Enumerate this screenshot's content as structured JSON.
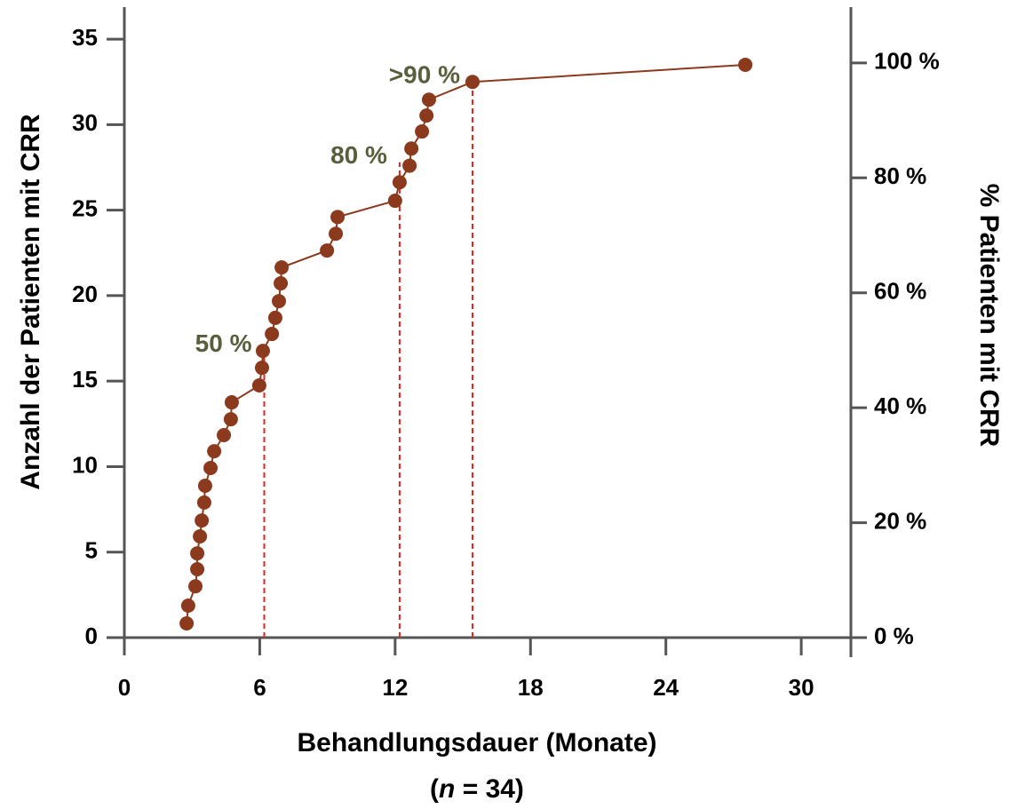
{
  "chart_data": {
    "type": "line",
    "x_label": "Behandlungsdauer (Monate)",
    "x_note": {
      "open": "(",
      "var": "n",
      "rest": " = 34)"
    },
    "y_label": "Anzahl der Patienten mit CRR",
    "y2_label": "% Patienten mit CRR",
    "x": [
      2.76,
      2.83,
      3.15,
      3.23,
      3.23,
      3.35,
      3.43,
      3.54,
      3.58,
      3.82,
      3.98,
      4.41,
      4.72,
      4.76,
      5.98,
      6.1,
      6.14,
      6.54,
      6.69,
      6.85,
      6.93,
      6.97,
      8.98,
      9.37,
      9.45,
      12.0,
      12.2,
      12.64,
      12.72,
      13.19,
      13.39,
      13.5,
      15.43,
      27.52
    ],
    "series": [
      {
        "color": "#8b3a1e",
        "values": [
          0.83,
          1.87,
          3.0,
          4.0,
          4.93,
          5.92,
          6.85,
          7.9,
          8.88,
          9.92,
          10.9,
          11.84,
          12.77,
          13.76,
          14.75,
          15.78,
          16.77,
          17.76,
          18.7,
          19.68,
          20.72,
          21.65,
          22.64,
          23.62,
          24.6,
          25.55,
          26.63,
          27.6,
          28.6,
          29.6,
          30.53,
          31.46,
          32.5,
          33.5
        ]
      }
    ],
    "xlim": [
      0,
      32.2
    ],
    "xticks": [
      0,
      6,
      12,
      18,
      24,
      30
    ],
    "ylim": [
      0,
      36.77
    ],
    "yticks": [
      0,
      5,
      10,
      15,
      20,
      25,
      30,
      35
    ],
    "y2lim": [
      0,
      109.4
    ],
    "y2ticks": [
      {
        "value": 0,
        "label": "0 %"
      },
      {
        "value": 20,
        "label": "20 %"
      },
      {
        "value": 40,
        "label": "40 %"
      },
      {
        "value": 60,
        "label": "60 %"
      },
      {
        "value": 80,
        "label": "80 %"
      },
      {
        "value": 100,
        "label": "100 %"
      }
    ],
    "reference_lines": [
      {
        "x": 6.2,
        "y": 16.8,
        "label": "50 %"
      },
      {
        "x": 12.2,
        "y": 27.8,
        "label": "80 %"
      },
      {
        "x": 15.43,
        "y": 32.5,
        "label": ">90 %"
      }
    ],
    "reference_color": "#e8231d",
    "annotation_color": "#5a5e3c"
  }
}
